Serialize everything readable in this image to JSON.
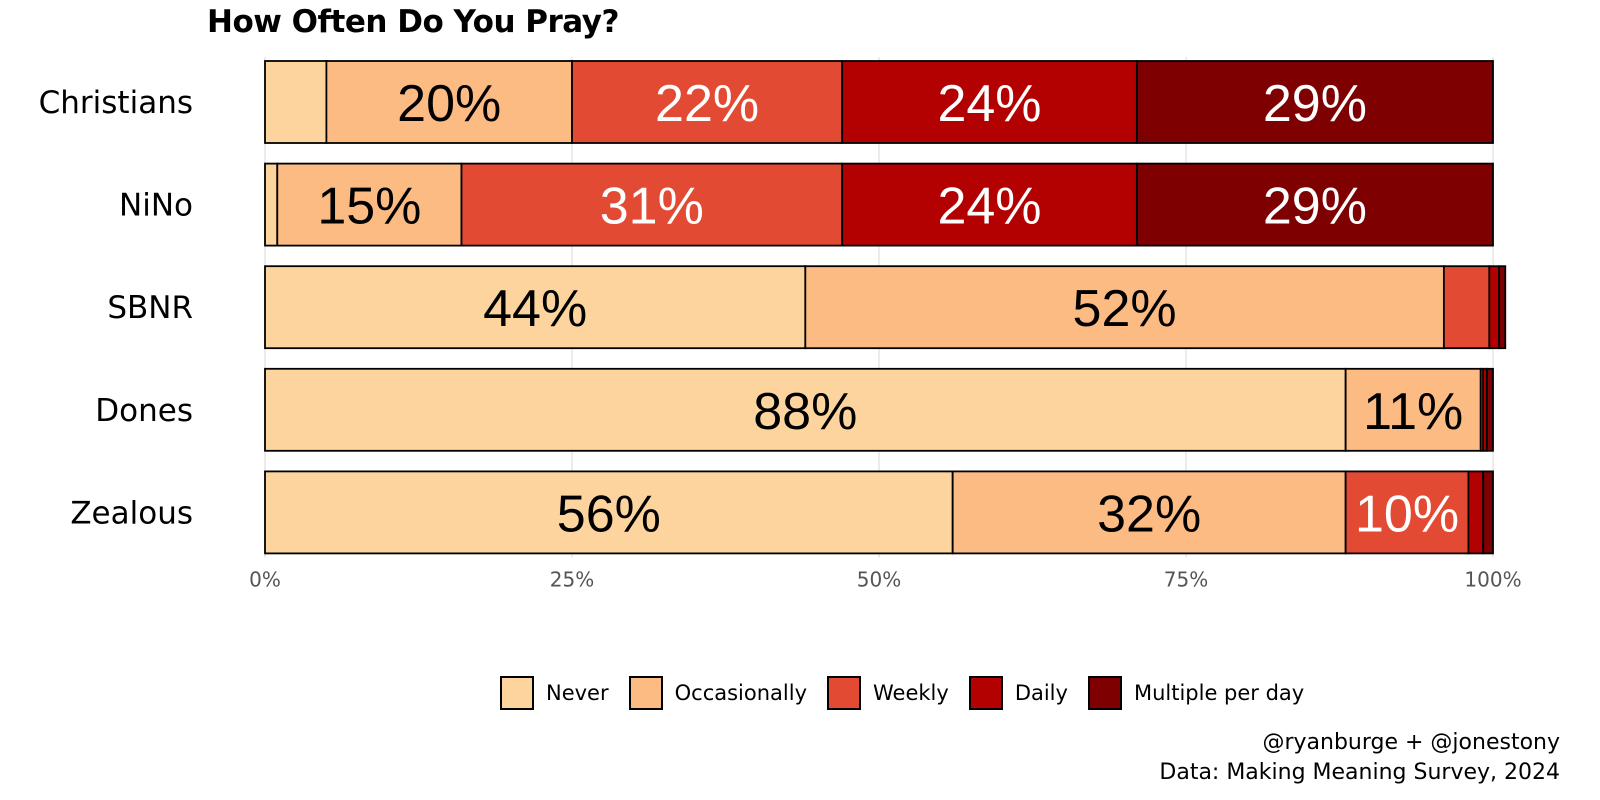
{
  "chart_data": {
    "type": "bar",
    "orientation": "horizontal",
    "stacked": true,
    "title": "How Often Do You Pray?",
    "categories": [
      "Christians",
      "NiNo",
      "SBNR",
      "Dones",
      "Zealous"
    ],
    "series": [
      {
        "name": "Never",
        "color": "#fdd49e",
        "values": [
          5,
          1,
          44,
          88,
          56
        ]
      },
      {
        "name": "Occasionally",
        "color": "#fdbb84",
        "values": [
          20,
          15,
          52,
          11,
          32
        ]
      },
      {
        "name": "Weekly",
        "color": "#e34a33",
        "values": [
          22,
          31,
          3.7,
          0.2,
          10
        ]
      },
      {
        "name": "Daily",
        "color": "#b30000",
        "values": [
          24,
          24,
          0.8,
          0.3,
          1.2
        ]
      },
      {
        "name": "Multiple per day",
        "color": "#7f0000",
        "values": [
          29,
          29,
          0.5,
          0.5,
          0.8
        ]
      }
    ],
    "segment_labels": [
      [
        "",
        "20%",
        "22%",
        "24%",
        "29%"
      ],
      [
        "",
        "15%",
        "31%",
        "24%",
        "29%"
      ],
      [
        "44%",
        "52%",
        "",
        "",
        ""
      ],
      [
        "88%",
        "11%",
        "",
        "",
        ""
      ],
      [
        "56%",
        "32%",
        "10%",
        "",
        ""
      ]
    ],
    "label_colors": [
      "#000000",
      "#000000",
      "#ffffff",
      "#ffffff",
      "#ffffff"
    ],
    "xlim": [
      0,
      100
    ],
    "x_ticks": [
      "0%",
      "25%",
      "50%",
      "75%",
      "100%"
    ],
    "grid": true,
    "legend_position": "bottom"
  },
  "caption": {
    "line1": "@ryanburge + @jonestony",
    "line2": "Data: Making Meaning Survey, 2024"
  }
}
